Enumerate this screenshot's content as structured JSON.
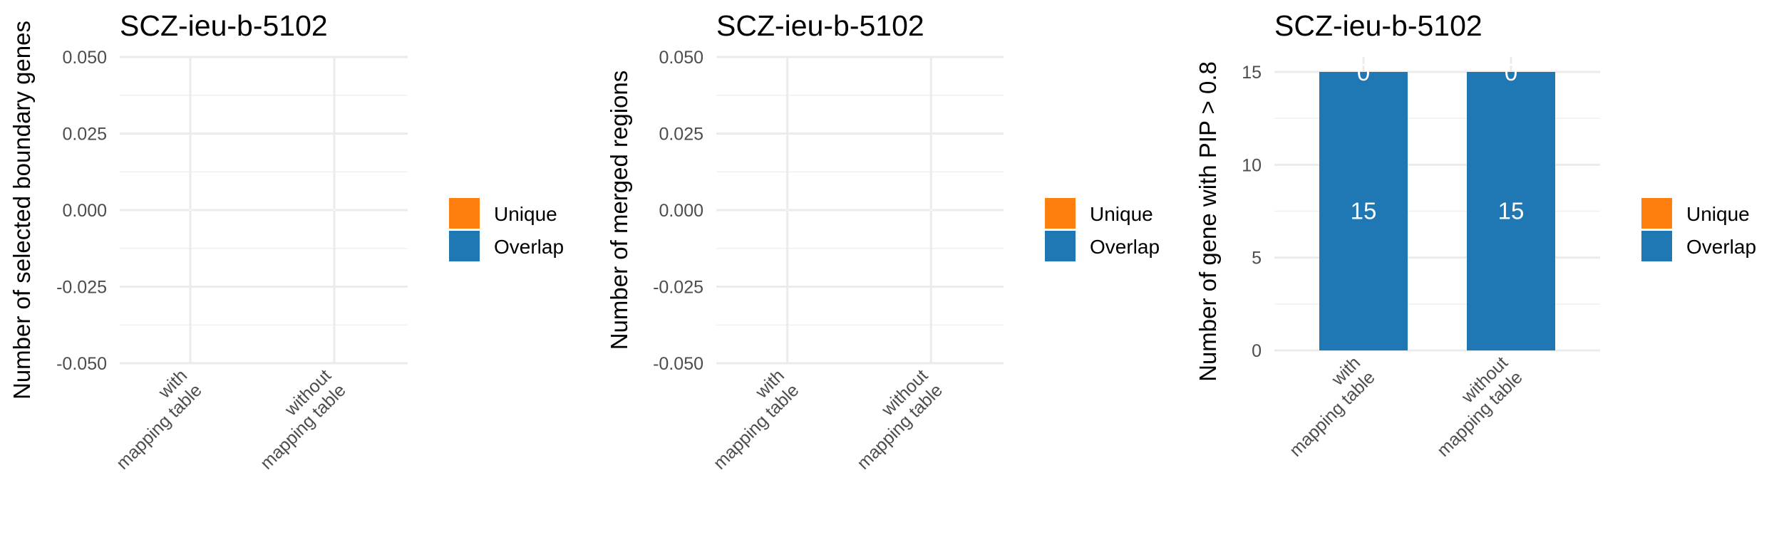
{
  "chart_data": [
    {
      "type": "bar",
      "title": "SCZ-ieu-b-5102",
      "xlabel": "",
      "ylabel": "Number of selected boundary genes",
      "categories": [
        "with\nmapping table",
        "without\nmapping table"
      ],
      "series": [
        {
          "name": "Unique",
          "values": [
            0,
            0
          ]
        },
        {
          "name": "Overlap",
          "values": [
            0,
            0
          ]
        }
      ],
      "ylim": [
        -0.05,
        0.05
      ],
      "yticks": [
        "-0.050",
        "-0.025",
        "0.000",
        "0.025",
        "0.050"
      ],
      "ytick_values": [
        -0.05,
        -0.025,
        0,
        0.025,
        0.05
      ],
      "data_labels": [],
      "stacked": true,
      "grid": true,
      "legend": "right"
    },
    {
      "type": "bar",
      "title": "SCZ-ieu-b-5102",
      "xlabel": "",
      "ylabel": "Number of merged regions",
      "categories": [
        "with\nmapping table",
        "without\nmapping table"
      ],
      "series": [
        {
          "name": "Unique",
          "values": [
            0,
            0
          ]
        },
        {
          "name": "Overlap",
          "values": [
            0,
            0
          ]
        }
      ],
      "ylim": [
        -0.05,
        0.05
      ],
      "yticks": [
        "-0.050",
        "-0.025",
        "0.000",
        "0.025",
        "0.050"
      ],
      "ytick_values": [
        -0.05,
        -0.025,
        0,
        0.025,
        0.05
      ],
      "data_labels": [],
      "stacked": true,
      "grid": true,
      "legend": "right"
    },
    {
      "type": "bar",
      "title": "SCZ-ieu-b-5102",
      "xlabel": "",
      "ylabel": "Number of gene with PIP > 0.8",
      "categories": [
        "with\nmapping table",
        "without\nmapping table"
      ],
      "series": [
        {
          "name": "Unique",
          "values": [
            0,
            0
          ]
        },
        {
          "name": "Overlap",
          "values": [
            15,
            15
          ]
        }
      ],
      "ylim": [
        0,
        15
      ],
      "yticks": [
        "0",
        "5",
        "10",
        "15"
      ],
      "ytick_values": [
        0,
        5,
        10,
        15
      ],
      "data_labels": [
        {
          "series": "Overlap",
          "text": [
            "15",
            "15"
          ]
        },
        {
          "series": "Unique",
          "text": [
            "0",
            "0"
          ]
        }
      ],
      "stacked": true,
      "grid": true,
      "legend": "right"
    }
  ],
  "colors": {
    "Unique": "#FF7F0E",
    "Overlap": "#1F77B4"
  }
}
